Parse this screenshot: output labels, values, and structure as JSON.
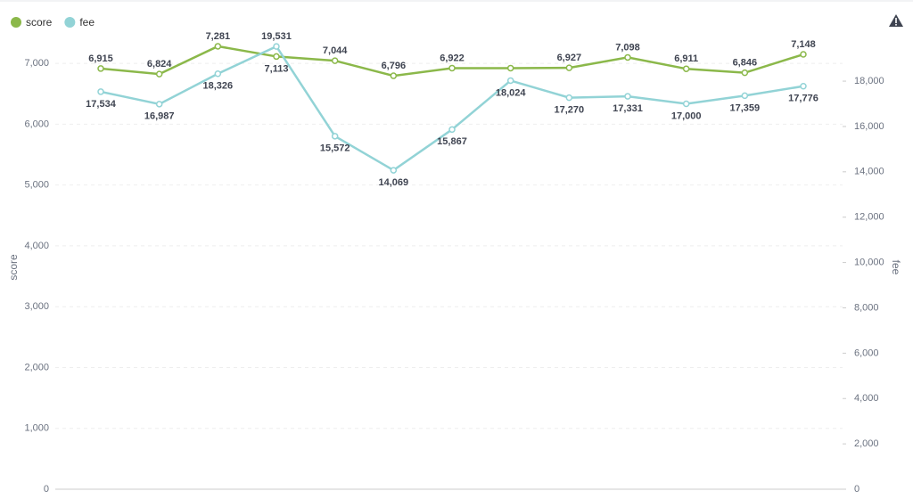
{
  "chart_data": {
    "type": "line",
    "categories": [
      null,
      null,
      null,
      null,
      null,
      null,
      null,
      null,
      null,
      null,
      null,
      null,
      null
    ],
    "series": [
      {
        "name": "score",
        "color": "#8bb84a",
        "values": [
          6915,
          6824,
          7281,
          7113,
          7044,
          6796,
          6922,
          6922,
          6927,
          7098,
          6911,
          6846,
          7148
        ],
        "value_labels": [
          "6,915",
          "6,824",
          "7,281",
          "7,113",
          "7,044",
          "6,796",
          "6,922",
          null,
          "6,927",
          "7,098",
          "6,911",
          "6,846",
          "7,148"
        ]
      },
      {
        "name": "fee",
        "color": "#92d3d6",
        "axis": "y2",
        "values": [
          17534,
          16987,
          18326,
          19531,
          15572,
          14069,
          15867,
          18024,
          17270,
          17331,
          17000,
          17359,
          17776
        ],
        "value_labels": [
          "17,534",
          "16,987",
          "18,326",
          "19,531",
          "15,572",
          "14,069",
          "15,867",
          "18,024",
          "17,270",
          "17,331",
          "17,000",
          "17,359",
          "17,776"
        ]
      }
    ],
    "ylabel": "score",
    "y2label": "fee",
    "ylim": [
      0,
      7500
    ],
    "yticks": [
      0,
      {
        "value": 1000,
        "label": "1,000"
      },
      {
        "value": 2000,
        "label": "2,000"
      },
      {
        "value": 3000,
        "label": "3,000"
      },
      {
        "value": 4000,
        "label": "4,000"
      },
      {
        "value": 5000,
        "label": "5,000"
      },
      {
        "value": 6000,
        "label": "6,000"
      },
      {
        "value": 7000,
        "label": "7,000"
      }
    ],
    "y2lim": [
      0,
      20125
    ],
    "y2ticks": [
      0,
      {
        "value": 2000,
        "label": "2,000"
      },
      {
        "value": 4000,
        "label": "4,000"
      },
      {
        "value": 6000,
        "label": "6,000"
      },
      {
        "value": 8000,
        "label": "8,000"
      },
      {
        "value": 10000,
        "label": "10,000"
      },
      {
        "value": 12000,
        "label": "12,000"
      },
      {
        "value": 14000,
        "label": "14,000"
      },
      {
        "value": 16000,
        "label": "16,000"
      },
      {
        "value": 18000,
        "label": "18,000"
      }
    ],
    "grid": true,
    "legend": "top-left"
  }
}
